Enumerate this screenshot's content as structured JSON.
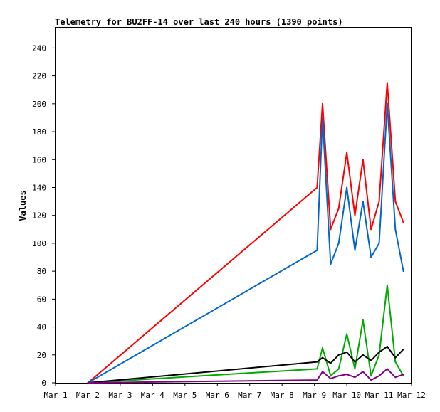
{
  "chart_data": {
    "type": "line",
    "title": "Telemetry for BU2FF-14 over last 240 hours (1390 points)",
    "xlabel": "",
    "ylabel": "Values",
    "x_ticks": [
      "Mar 1",
      "Mar 2",
      "Mar 3",
      "Mar 4",
      "Mar 5",
      "Mar 6",
      "Mar 7",
      "Mar 8",
      "Mar 9",
      "Mar 10",
      "Mar 11",
      "Mar 12"
    ],
    "y_ticks": [
      0,
      20,
      40,
      60,
      80,
      100,
      120,
      140,
      160,
      180,
      200,
      220,
      240
    ],
    "xlim": [
      "Mar 1",
      "Mar 12"
    ],
    "ylim": [
      0,
      255
    ],
    "grid": false,
    "legend": "none",
    "x": [
      "Mar 2",
      "Mar 9 02:00",
      "Mar 9 06:00",
      "Mar 9 12:00",
      "Mar 9 18:00",
      "Mar 10 00:00",
      "Mar 10 06:00",
      "Mar 10 12:00",
      "Mar 10 18:00",
      "Mar 11 00:00",
      "Mar 11 06:00",
      "Mar 11 12:00",
      "Mar 11 18:00"
    ],
    "series": [
      {
        "color": "#ff0000",
        "values": [
          0,
          140,
          200,
          110,
          125,
          165,
          120,
          160,
          110,
          130,
          215,
          130,
          115
        ]
      },
      {
        "color": "#0066cc",
        "values": [
          0,
          95,
          190,
          85,
          100,
          140,
          95,
          130,
          90,
          100,
          200,
          110,
          80
        ]
      },
      {
        "color": "#00aa00",
        "values": [
          0,
          10,
          25,
          5,
          10,
          35,
          10,
          45,
          5,
          20,
          70,
          15,
          5
        ]
      },
      {
        "color": "#000000",
        "values": [
          0,
          15,
          18,
          14,
          20,
          22,
          15,
          20,
          16,
          22,
          26,
          18,
          24
        ]
      },
      {
        "color": "#800080",
        "values": [
          0,
          2,
          8,
          3,
          5,
          6,
          4,
          8,
          2,
          5,
          10,
          4,
          6
        ]
      }
    ]
  }
}
